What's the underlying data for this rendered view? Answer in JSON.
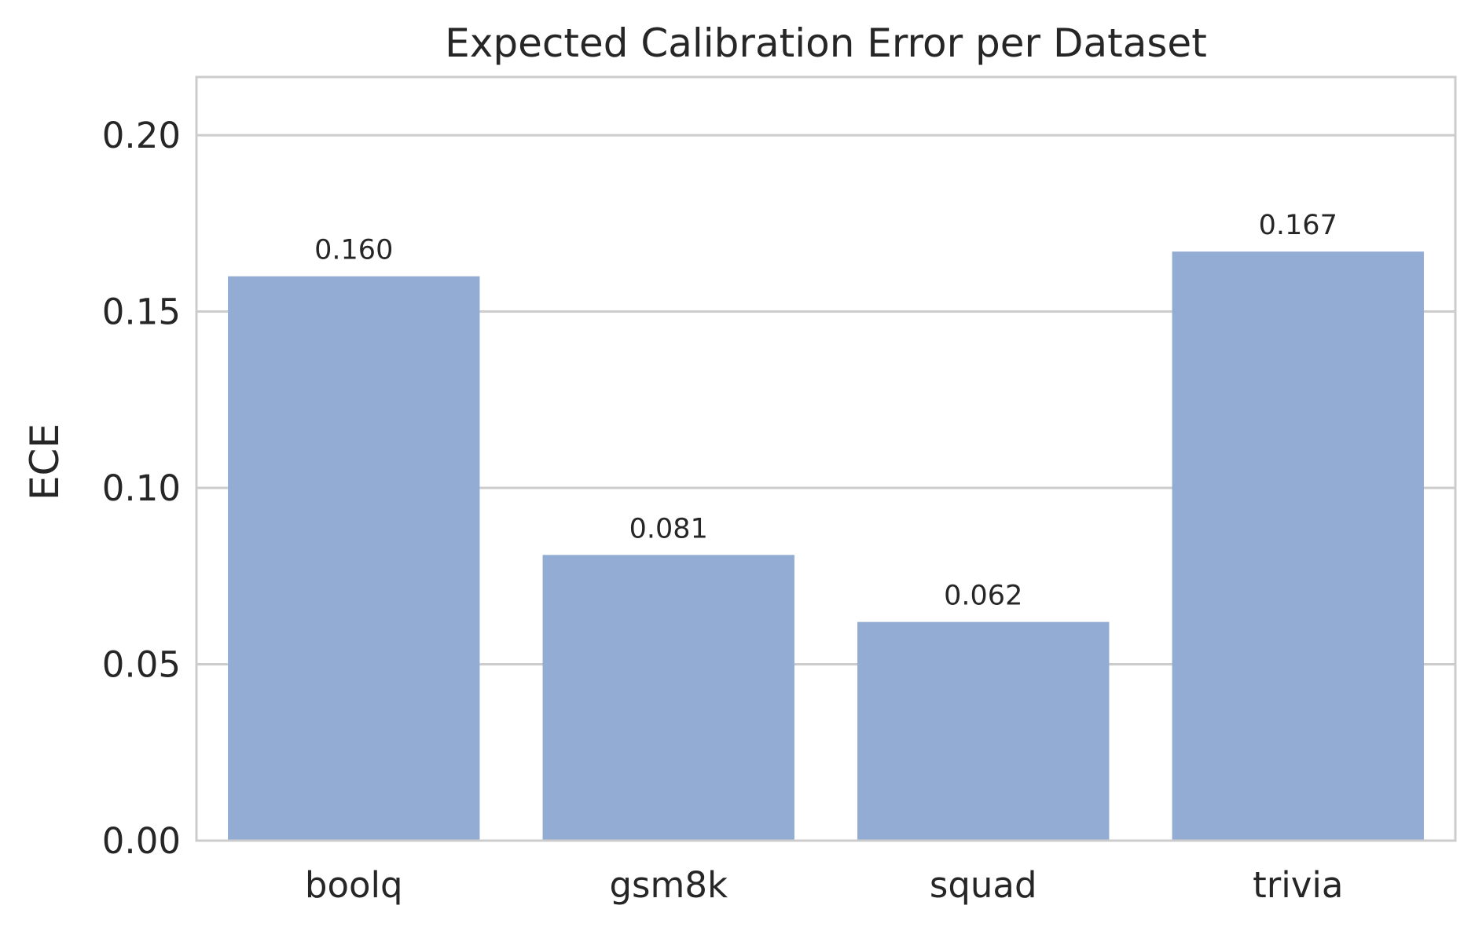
{
  "chart_data": {
    "type": "bar",
    "title": "Expected Calibration Error per Dataset",
    "xlabel": "",
    "ylabel": "ECE",
    "categories": [
      "boolq",
      "gsm8k",
      "squad",
      "trivia"
    ],
    "values": [
      0.16,
      0.081,
      0.062,
      0.167
    ],
    "data_labels": [
      "0.160",
      "0.081",
      "0.062",
      "0.167"
    ],
    "ylim": [
      0,
      0.2165
    ],
    "yticks": [
      0.0,
      0.05,
      0.1,
      0.15,
      0.2
    ],
    "ytick_labels": [
      "0.00",
      "0.05",
      "0.10",
      "0.15",
      "0.20"
    ],
    "grid": true,
    "grid_axis": "y",
    "legend": "none",
    "bar_color": "#92acd4",
    "grid_color": "#cccccc",
    "text_color": "#262626"
  }
}
